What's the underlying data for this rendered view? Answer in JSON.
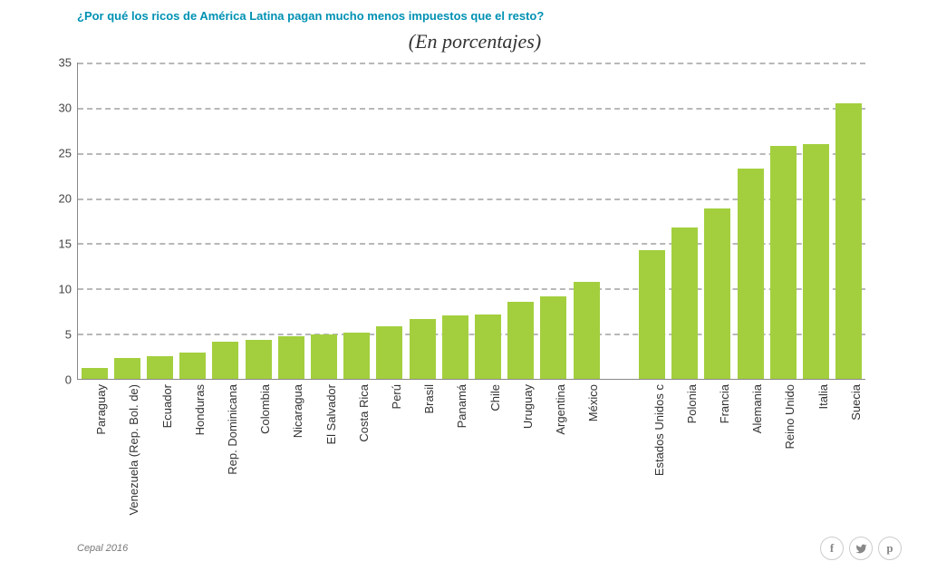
{
  "headline": "¿Por qué los ricos de América Latina pagan mucho menos impuestos que el resto?",
  "subtitle": "(En porcentajes)",
  "source": "Cepal 2016",
  "chart": {
    "type": "bar",
    "ylim": [
      0,
      35
    ],
    "yticks": [
      0,
      5,
      10,
      15,
      20,
      25,
      30,
      35
    ],
    "bar_color": "#a3cf3e",
    "grid_color": "#b8b8b8",
    "background_color": "#ffffff",
    "axis_color": "#888888",
    "label_fontsize": 13,
    "categories": [
      "Paraguay",
      "Venezuela (Rep. Bol. de)",
      "Ecuador",
      "Honduras",
      "Rep. Dominicana",
      "Colombia",
      "Nicaragua",
      "El Salvador",
      "Costa Rica",
      "Perú",
      "Brasil",
      "Panamá",
      "Chile",
      "Uruguay",
      "Argentina",
      "México",
      "",
      "Estados Unidos",
      "Polonia",
      "Francia",
      "Alemania",
      "Reino Unido",
      "Italia",
      "Suecia"
    ],
    "values": [
      1.2,
      2.3,
      2.5,
      2.9,
      4.1,
      4.3,
      4.7,
      4.9,
      5.1,
      5.8,
      6.6,
      7.0,
      7.1,
      8.5,
      9.1,
      10.7,
      null,
      14.2,
      16.7,
      18.9,
      23.3,
      25.8,
      26.0,
      30.5
    ],
    "gap_index": 16,
    "us_footnote_marker": "c"
  },
  "share_icons": {
    "facebook": "f",
    "twitter": "twitter-icon",
    "pinterest": "p"
  }
}
